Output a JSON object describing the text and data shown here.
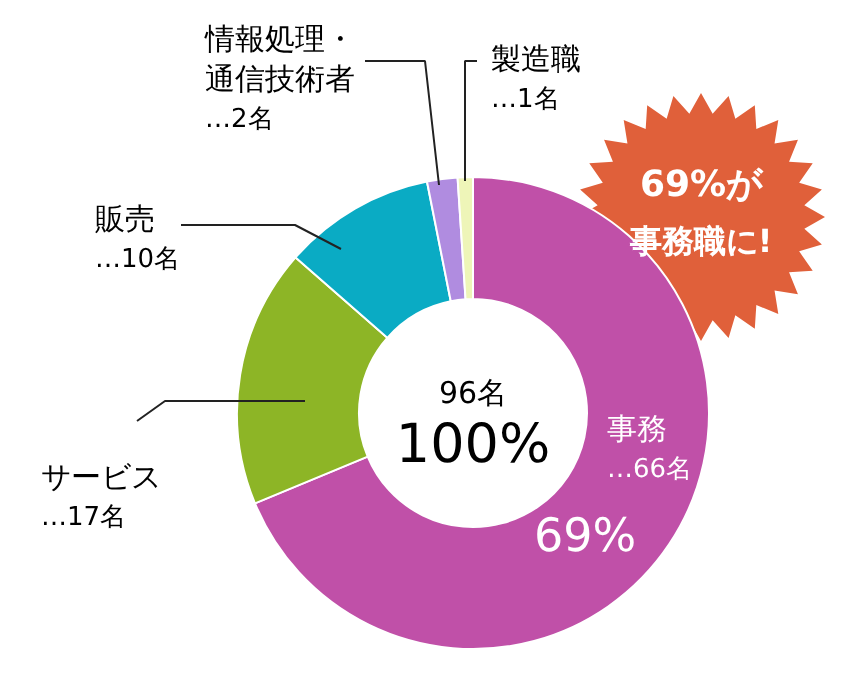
{
  "chart_data": {
    "type": "donut",
    "categories": [
      "事務",
      "サービス",
      "販売",
      "情報処理・通信技術者",
      "製造職"
    ],
    "values": [
      66,
      17,
      10,
      2,
      1
    ],
    "colors": [
      "#c050a8",
      "#8db526",
      "#0aabc4",
      "#b08ce0",
      "#eef5b8"
    ],
    "value_labels": [
      "…66名",
      "…17名",
      "…10名",
      "…2名",
      "…1名"
    ],
    "annotations": [
      "96名",
      "100%",
      "69%",
      "69%が",
      "事務職に!"
    ]
  }
}
